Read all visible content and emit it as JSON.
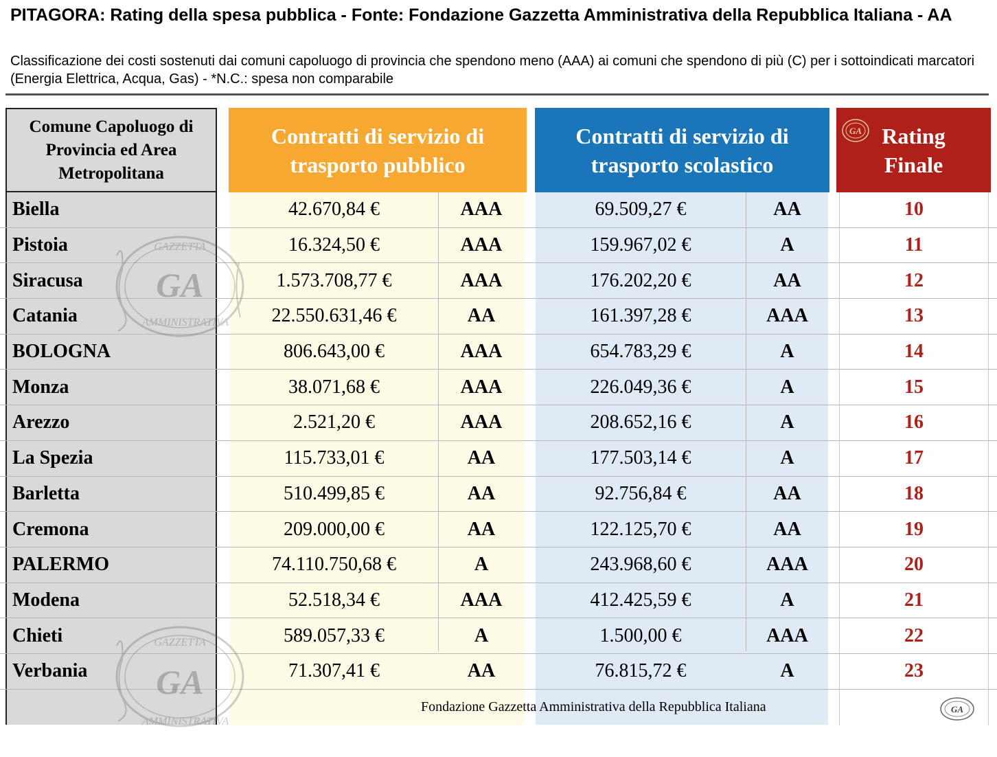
{
  "header": {
    "title": "PITAGORA: Rating della spesa pubblica - Fonte: Fondazione Gazzetta Amministrativa della Repubblica Italiana - AA",
    "subtitle": "Classificazione dei costi sostenuti dai comuni capoluogo di provincia che spendono meno (AAA) ai comuni che spendono di più (C) per i sottoindicati marcatori (Energia Elettrica, Acqua, Gas) - *N.C.: spesa non comparabile"
  },
  "table": {
    "columns": {
      "city": "Comune Capoluogo di Provincia ed Area Metropolitana",
      "public_transport": "Contratti di servizio di trasporto pubblico",
      "school_transport": "Contratti di servizio di trasporto scolastico",
      "rating": "Rating Finale"
    },
    "rows": [
      {
        "city": "Biella",
        "pub_value": "42.670,84 €",
        "pub_rating": "AAA",
        "sco_value": "69.509,27 €",
        "sco_rating": "AA",
        "final": "10"
      },
      {
        "city": "Pistoia",
        "pub_value": "16.324,50 €",
        "pub_rating": "AAA",
        "sco_value": "159.967,02 €",
        "sco_rating": "A",
        "final": "11"
      },
      {
        "city": "Siracusa",
        "pub_value": "1.573.708,77 €",
        "pub_rating": "AAA",
        "sco_value": "176.202,20 €",
        "sco_rating": "AA",
        "final": "12"
      },
      {
        "city": "Catania",
        "pub_value": "22.550.631,46 €",
        "pub_rating": "AA",
        "sco_value": "161.397,28 €",
        "sco_rating": "AAA",
        "final": "13"
      },
      {
        "city": "BOLOGNA",
        "pub_value": "806.643,00 €",
        "pub_rating": "AAA",
        "sco_value": "654.783,29 €",
        "sco_rating": "A",
        "final": "14"
      },
      {
        "city": "Monza",
        "pub_value": "38.071,68 €",
        "pub_rating": "AAA",
        "sco_value": "226.049,36 €",
        "sco_rating": "A",
        "final": "15"
      },
      {
        "city": "Arezzo",
        "pub_value": "2.521,20 €",
        "pub_rating": "AAA",
        "sco_value": "208.652,16 €",
        "sco_rating": "A",
        "final": "16"
      },
      {
        "city": "La Spezia",
        "pub_value": "115.733,01 €",
        "pub_rating": "AA",
        "sco_value": "177.503,14 €",
        "sco_rating": "A",
        "final": "17"
      },
      {
        "city": "Barletta",
        "pub_value": "510.499,85 €",
        "pub_rating": "AA",
        "sco_value": "92.756,84 €",
        "sco_rating": "AA",
        "final": "18"
      },
      {
        "city": "Cremona",
        "pub_value": "209.000,00 €",
        "pub_rating": "AA",
        "sco_value": "122.125,70 €",
        "sco_rating": "AA",
        "final": "19"
      },
      {
        "city": "PALERMO",
        "pub_value": "74.110.750,68 €",
        "pub_rating": "A",
        "sco_value": "243.968,60 €",
        "sco_rating": "AAA",
        "final": "20"
      },
      {
        "city": "Modena",
        "pub_value": "52.518,34 €",
        "pub_rating": "AAA",
        "sco_value": "412.425,59 €",
        "sco_rating": "A",
        "final": "21"
      },
      {
        "city": "Chieti",
        "pub_value": "589.057,33 €",
        "pub_rating": "A",
        "sco_value": "1.500,00 €",
        "sco_rating": "AAA",
        "final": "22"
      },
      {
        "city": "Verbania",
        "pub_value": "71.307,41 €",
        "pub_rating": "AA",
        "sco_value": "76.815,72 €",
        "sco_rating": "A",
        "final": "23"
      }
    ]
  },
  "footer": {
    "source": "Fondazione Gazzetta Amministrativa della Repubblica Italiana"
  },
  "watermark": {
    "top_text": "GAZZETTA",
    "center_text": "GA",
    "bottom_text": "AMMINISTRATIVA"
  },
  "colors": {
    "public_header": "#f7a830",
    "school_header": "#1a76b8",
    "rating_header": "#b0201a",
    "rating_text": "#b0201a",
    "city_bg": "#d9d9d9",
    "public_bg": "#fdfbe6",
    "school_bg": "#dfeaf5"
  }
}
